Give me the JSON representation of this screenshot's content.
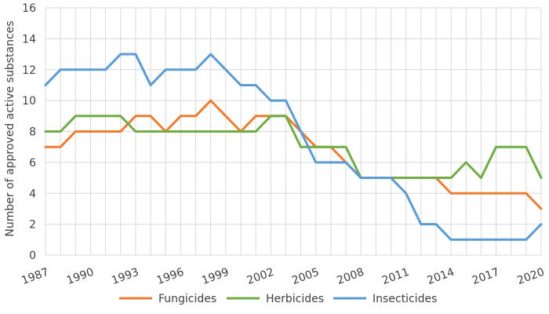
{
  "chart_data": {
    "type": "line",
    "ylabel": "Number of approved active substances",
    "xlabel": "",
    "ylim": [
      0,
      16
    ],
    "yticks": [
      0,
      2,
      4,
      6,
      8,
      10,
      12,
      14,
      16
    ],
    "x": [
      1987,
      1988,
      1989,
      1990,
      1991,
      1992,
      1993,
      1994,
      1995,
      1996,
      1997,
      1998,
      1999,
      2000,
      2001,
      2002,
      2003,
      2004,
      2005,
      2006,
      2007,
      2008,
      2009,
      2010,
      2011,
      2012,
      2013,
      2014,
      2015,
      2016,
      2017,
      2018,
      2019,
      2020
    ],
    "xtick_labels": [
      "1987",
      "1990",
      "1993",
      "1996",
      "1999",
      "2002",
      "2005",
      "2008",
      "2011",
      "2014",
      "2017",
      "2020"
    ],
    "grid": true,
    "legend_position": "bottom",
    "series": [
      {
        "name": "Fungicides",
        "color": "#ED7D31",
        "values": [
          7,
          7,
          8,
          8,
          8,
          8,
          9,
          9,
          8,
          9,
          9,
          10,
          9,
          8,
          9,
          9,
          9,
          8,
          7,
          7,
          6,
          5,
          5,
          5,
          5,
          5,
          5,
          4,
          4,
          4,
          4,
          4,
          4,
          3
        ]
      },
      {
        "name": "Herbicides",
        "color": "#70AD47",
        "values": [
          8,
          8,
          9,
          9,
          9,
          9,
          8,
          8,
          8,
          8,
          8,
          8,
          8,
          8,
          8,
          9,
          9,
          7,
          7,
          7,
          7,
          5,
          5,
          5,
          5,
          5,
          5,
          5,
          6,
          5,
          7,
          7,
          7,
          5
        ]
      },
      {
        "name": "Insecticides",
        "color": "#5B9BD5",
        "values": [
          11,
          12,
          12,
          12,
          12,
          13,
          13,
          11,
          12,
          12,
          12,
          13,
          12,
          11,
          11,
          10,
          10,
          8,
          6,
          6,
          6,
          5,
          5,
          5,
          4,
          2,
          2,
          1,
          1,
          1,
          1,
          1,
          1,
          2
        ]
      }
    ]
  }
}
